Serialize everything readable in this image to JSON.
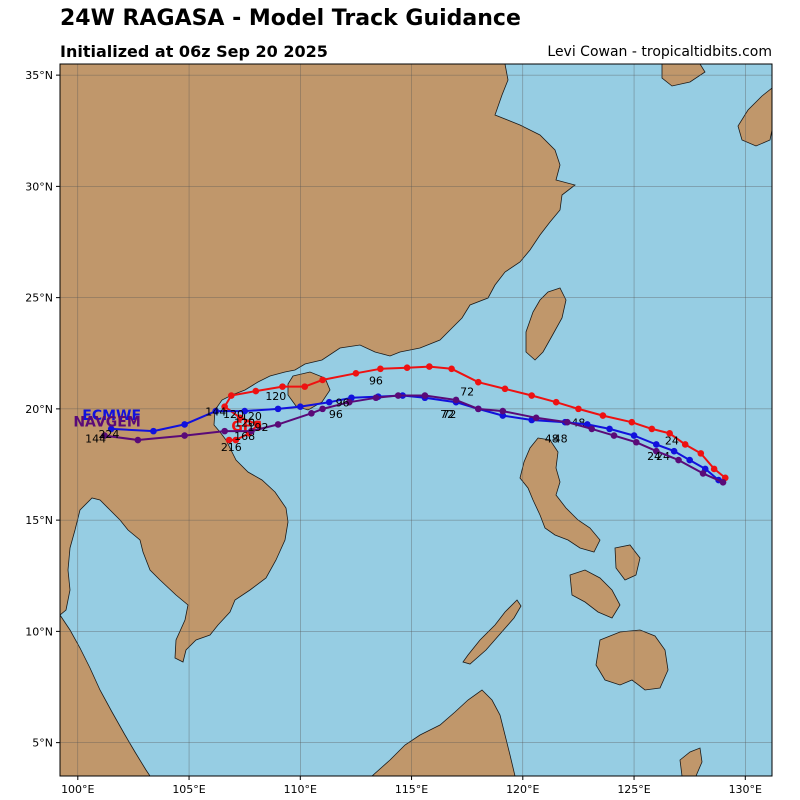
{
  "header": {
    "title": "24W RAGASA - Model Track Guidance",
    "subtitle": "Initialized at 06z Sep 20 2025",
    "credit": "Levi Cowan - tropicaltidbits.com"
  },
  "colors": {
    "ocean": "#96cde3",
    "land": "#c0976b",
    "coast": "#1a1a1a",
    "grid": "#555555"
  },
  "map": {
    "lon_range": [
      99.2,
      131.2
    ],
    "lat_range": [
      3.5,
      35.5
    ],
    "lon_ticks": [
      {
        "value": 100,
        "label": "100°E"
      },
      {
        "value": 105,
        "label": "105°E"
      },
      {
        "value": 110,
        "label": "110°E"
      },
      {
        "value": 115,
        "label": "115°E"
      },
      {
        "value": 120,
        "label": "120°E"
      },
      {
        "value": 125,
        "label": "125°E"
      },
      {
        "value": 130,
        "label": "130°E"
      }
    ],
    "lat_ticks": [
      {
        "value": 5,
        "label": "5°N"
      },
      {
        "value": 10,
        "label": "10°N"
      },
      {
        "value": 15,
        "label": "15°N"
      },
      {
        "value": 20,
        "label": "20°N"
      },
      {
        "value": 25,
        "label": "25°N"
      },
      {
        "value": 30,
        "label": "30°N"
      },
      {
        "value": 35,
        "label": "35°N"
      }
    ],
    "grid": true
  },
  "chart_data": {
    "type": "map-tracks",
    "series": [
      {
        "name": "GFS",
        "color": "#ee1111",
        "points": [
          [
            129.1,
            16.9
          ],
          [
            128.6,
            17.3
          ],
          [
            128.0,
            18.0
          ],
          [
            127.3,
            18.4
          ],
          [
            126.6,
            18.9
          ],
          [
            125.8,
            19.1
          ],
          [
            124.9,
            19.4
          ],
          [
            123.6,
            19.7
          ],
          [
            122.5,
            20.0
          ],
          [
            121.5,
            20.3
          ],
          [
            120.4,
            20.6
          ],
          [
            119.2,
            20.9
          ],
          [
            118.0,
            21.2
          ],
          [
            116.8,
            21.8
          ],
          [
            115.8,
            21.9
          ],
          [
            114.8,
            21.85
          ],
          [
            113.6,
            21.8
          ],
          [
            112.5,
            21.6
          ],
          [
            111.0,
            21.3
          ],
          [
            110.2,
            21.0
          ],
          [
            109.2,
            21.0
          ],
          [
            108.0,
            20.8
          ],
          [
            106.9,
            20.6
          ],
          [
            106.6,
            20.1
          ],
          [
            107.3,
            19.6
          ],
          [
            108.1,
            19.3
          ],
          [
            107.7,
            18.9
          ],
          [
            107.1,
            18.6
          ],
          [
            106.8,
            18.6
          ]
        ],
        "labels": [
          {
            "text": "24",
            "lon": 126.7,
            "lat": 18.4
          },
          {
            "text": "48",
            "lon": 122.5,
            "lat": 19.2
          },
          {
            "text": "72",
            "lon": 117.5,
            "lat": 20.6
          },
          {
            "text": "96",
            "lon": 113.4,
            "lat": 21.1
          },
          {
            "text": "120",
            "lon": 108.9,
            "lat": 20.4
          },
          {
            "text": "120",
            "lon": 107.8,
            "lat": 19.5
          },
          {
            "text": "168",
            "lon": 107.5,
            "lat": 18.6
          },
          {
            "text": "216",
            "lon": 106.9,
            "lat": 18.1
          }
        ],
        "name_label": {
          "lon": 106.9,
          "lat": 19.0
        }
      },
      {
        "name": "ECMWF",
        "color": "#1111dd",
        "points": [
          [
            128.8,
            16.8
          ],
          [
            128.2,
            17.3
          ],
          [
            127.5,
            17.7
          ],
          [
            126.8,
            18.1
          ],
          [
            126.0,
            18.4
          ],
          [
            125.0,
            18.8
          ],
          [
            123.9,
            19.1
          ],
          [
            122.9,
            19.3
          ],
          [
            121.9,
            19.4
          ],
          [
            120.4,
            19.5
          ],
          [
            119.1,
            19.7
          ],
          [
            118.0,
            20.0
          ],
          [
            117.0,
            20.3
          ],
          [
            115.6,
            20.5
          ],
          [
            114.6,
            20.6
          ],
          [
            113.5,
            20.55
          ],
          [
            112.3,
            20.5
          ],
          [
            111.3,
            20.3
          ],
          [
            110.0,
            20.1
          ],
          [
            109.0,
            20.0
          ],
          [
            107.5,
            19.9
          ],
          [
            106.2,
            19.9
          ],
          [
            104.8,
            19.3
          ],
          [
            103.4,
            19.0
          ],
          [
            101.5,
            19.1
          ]
        ],
        "labels": [
          {
            "text": "24",
            "lon": 126.3,
            "lat": 17.7
          },
          {
            "text": "48",
            "lon": 121.7,
            "lat": 18.5
          },
          {
            "text": "72",
            "lon": 116.7,
            "lat": 19.6
          },
          {
            "text": "96",
            "lon": 111.6,
            "lat": 19.6
          },
          {
            "text": "120",
            "lon": 107.0,
            "lat": 19.6
          }
        ],
        "name_label": {
          "lon": 100.2,
          "lat": 19.5
        }
      },
      {
        "name": "NAVGEM",
        "color": "#5a0a78",
        "points": [
          [
            129.0,
            16.7
          ],
          [
            128.1,
            17.1
          ],
          [
            127.0,
            17.7
          ],
          [
            126.0,
            18.1
          ],
          [
            125.1,
            18.5
          ],
          [
            124.1,
            18.8
          ],
          [
            123.1,
            19.1
          ],
          [
            122.0,
            19.4
          ],
          [
            120.6,
            19.6
          ],
          [
            119.1,
            19.9
          ],
          [
            118.0,
            20.0
          ],
          [
            117.0,
            20.4
          ],
          [
            115.6,
            20.6
          ],
          [
            114.4,
            20.6
          ],
          [
            113.4,
            20.5
          ],
          [
            112.2,
            20.3
          ],
          [
            111.0,
            20.0
          ],
          [
            110.5,
            19.8
          ],
          [
            109.0,
            19.3
          ],
          [
            107.8,
            19.0
          ],
          [
            106.6,
            19.0
          ],
          [
            104.8,
            18.8
          ],
          [
            102.7,
            18.6
          ],
          [
            101.2,
            18.8
          ]
        ],
        "labels": [
          {
            "text": "24",
            "lon": 125.9,
            "lat": 17.7
          },
          {
            "text": "48",
            "lon": 121.3,
            "lat": 18.5
          },
          {
            "text": "72",
            "lon": 116.6,
            "lat": 19.6
          },
          {
            "text": "96",
            "lon": 111.9,
            "lat": 20.1
          },
          {
            "text": "120",
            "lon": 107.5,
            "lat": 19.2
          },
          {
            "text": "144",
            "lon": 106.2,
            "lat": 19.7
          },
          {
            "text": "192",
            "lon": 108.1,
            "lat": 19.0
          },
          {
            "text": "144",
            "lon": 100.8,
            "lat": 18.5
          },
          {
            "text": "224",
            "lon": 101.4,
            "lat": 18.7
          }
        ],
        "name_label": {
          "lon": 99.8,
          "lat": 19.2
        }
      }
    ]
  }
}
